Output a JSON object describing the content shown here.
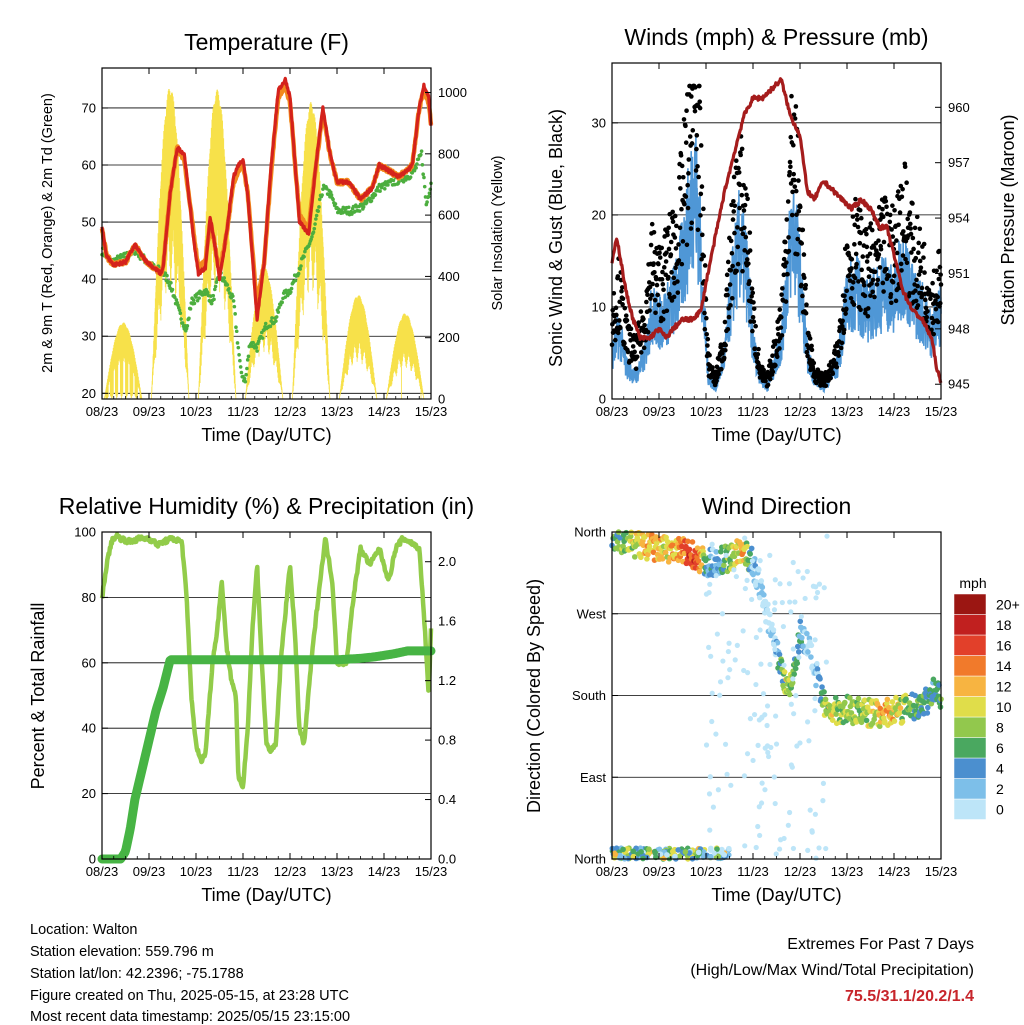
{
  "colors": {
    "temp_red": "#d4221c",
    "temp_orange": "#f28a1e",
    "dewpoint_green": "#4cae3e",
    "solar_yellow": "#f7e14a",
    "wind_blue": "#4f97d6",
    "gust_black": "#000000",
    "pressure_maroon": "#a51c1c",
    "rh_lightgreen": "#92cc4a",
    "precip_green": "#47b444",
    "extremes_red": "#c7252b"
  },
  "speed_colors": [
    "#bde5f8",
    "#7dbfe9",
    "#4b8fcf",
    "#4aa860",
    "#92c84d",
    "#e0dd4a",
    "#f7b441",
    "#f17a2b",
    "#e2402a",
    "#c1201f",
    "#9b1612"
  ],
  "time_ticks": [
    "08/23",
    "09/23",
    "10/23",
    "11/23",
    "12/23",
    "13/23",
    "14/23",
    "15/23"
  ],
  "chart_data": [
    {
      "type": "line",
      "title": "Temperature (F)",
      "xlabel": "Time (Day/UTC)",
      "ylabel": "2m & 9m T (Red, Orange) & 2m Td (Green)",
      "y2label": "Solar Insolation (Yellow)",
      "xlim": [
        8,
        15
      ],
      "ylim": [
        19,
        77
      ],
      "y2lim": [
        0,
        1080
      ],
      "yticks": [
        20,
        30,
        40,
        50,
        60,
        70
      ],
      "y2ticks": [
        0,
        200,
        400,
        600,
        800,
        1000
      ],
      "grid": true,
      "series": [
        {
          "name": "2m T",
          "x": [
            8.0,
            8.1,
            8.25,
            8.5,
            8.7,
            8.9,
            9.1,
            9.25,
            9.3,
            9.45,
            9.6,
            9.75,
            9.95,
            10.05,
            10.2,
            10.3,
            10.4,
            10.5,
            10.65,
            10.8,
            10.9,
            11.0,
            11.1,
            11.2,
            11.3,
            11.45,
            11.6,
            11.75,
            11.9,
            12.0,
            12.2,
            12.4,
            12.55,
            12.7,
            12.85,
            13.0,
            13.25,
            13.5,
            13.75,
            13.9,
            14.1,
            14.3,
            14.5,
            14.6,
            14.75,
            14.85,
            14.95,
            15.0
          ],
          "y": [
            49,
            44,
            42.5,
            43,
            46,
            43.5,
            42,
            41,
            42,
            55,
            63,
            62,
            47,
            41,
            42,
            51,
            46,
            40,
            48,
            58,
            60,
            61,
            55,
            44,
            33,
            43,
            60,
            73,
            75,
            72,
            50,
            48,
            60,
            70,
            62,
            57,
            57,
            54,
            56,
            60,
            59,
            58,
            59,
            60,
            70,
            74,
            72,
            67
          ]
        },
        {
          "name": "9m T",
          "x": [
            8.0,
            8.1,
            8.25,
            8.5,
            8.7,
            8.9,
            9.1,
            9.25,
            9.3,
            9.45,
            9.6,
            9.75,
            9.95,
            10.05,
            10.2,
            10.3,
            10.4,
            10.5,
            10.65,
            10.8,
            10.9,
            11.0,
            11.1,
            11.2,
            11.3,
            11.45,
            11.6,
            11.75,
            11.9,
            12.0,
            12.2,
            12.4,
            12.55,
            12.7,
            12.85,
            13.0,
            13.25,
            13.5,
            13.75,
            13.9,
            14.1,
            14.3,
            14.5,
            14.6,
            14.75,
            14.85,
            14.95,
            15.0
          ],
          "y": [
            49,
            44,
            42.5,
            43,
            46,
            43.5,
            42,
            41,
            42,
            55,
            63,
            61,
            48,
            42,
            43,
            50,
            46,
            41,
            48,
            57,
            59,
            60,
            55,
            45,
            35,
            43,
            59,
            72,
            74,
            71,
            51,
            49,
            60,
            69,
            62,
            57,
            57,
            54,
            56,
            60,
            59,
            58,
            59,
            60,
            70,
            73,
            71,
            67
          ]
        },
        {
          "name": "2m Td",
          "x": [
            8.0,
            8.2,
            8.5,
            8.7,
            8.9,
            9.1,
            9.25,
            9.3,
            9.4,
            9.5,
            9.65,
            9.8,
            9.9,
            10.05,
            10.2,
            10.35,
            10.5,
            10.65,
            10.8,
            10.95,
            11.05,
            11.15,
            11.3,
            11.5,
            11.7,
            11.85,
            12.0,
            12.2,
            12.4,
            12.5,
            12.6,
            12.7,
            12.85,
            13.0,
            13.3,
            13.6,
            13.9,
            14.2,
            14.5,
            14.65,
            14.8,
            14.9,
            15.0
          ],
          "y": [
            45,
            43,
            44,
            45,
            43.5,
            42,
            41.5,
            41,
            40,
            38,
            34,
            31,
            36,
            37,
            38,
            36,
            41,
            39,
            36,
            24,
            22,
            29,
            28,
            32,
            33,
            37,
            38,
            42,
            46,
            48,
            52,
            56,
            55,
            52,
            52,
            53,
            56,
            57,
            58,
            59,
            62,
            53,
            57
          ]
        },
        {
          "name": "Solar Insolation",
          "axis": "y2",
          "days": [
            {
              "peak": 250,
              "floor": 120
            },
            {
              "peak": 1020,
              "floor": 120
            },
            {
              "peak": 1010,
              "floor": 100
            },
            {
              "peak": 430,
              "floor": 120
            },
            {
              "peak": 970,
              "floor": 120
            },
            {
              "peak": 340,
              "floor": 120
            },
            {
              "peak": 280,
              "floor": 100
            },
            {
              "peak": 1080,
              "floor": 150
            }
          ]
        }
      ]
    },
    {
      "type": "scatter",
      "title": "Winds (mph) & Pressure (mb)",
      "xlabel": "Time (Day/UTC)",
      "ylabel": "Sonic Wind & Gust (Blue, Black)",
      "y2label": "Station Pressure (Maroon)",
      "xlim": [
        8,
        15
      ],
      "ylim": [
        0,
        36.5
      ],
      "y2lim": [
        944.2,
        962.4
      ],
      "yticks": [
        0,
        10,
        20,
        30
      ],
      "y2ticks": [
        945,
        948,
        951,
        954,
        957,
        960
      ],
      "grid": true,
      "series": [
        {
          "name": "Sonic Wind",
          "x": [
            8.0,
            8.15,
            8.3,
            8.5,
            8.7,
            8.85,
            9.0,
            9.2,
            9.4,
            9.6,
            9.75,
            9.85,
            9.95,
            10.05,
            10.2,
            10.4,
            10.55,
            10.7,
            10.85,
            11.0,
            11.15,
            11.3,
            11.45,
            11.6,
            11.75,
            11.85,
            12.0,
            12.15,
            12.3,
            12.5,
            12.65,
            12.8,
            13.0,
            13.2,
            13.4,
            13.6,
            13.8,
            14.0,
            14.2,
            14.4,
            14.6,
            14.8,
            15.0
          ],
          "y": [
            4,
            6,
            3,
            2,
            4,
            8,
            7,
            8,
            10,
            15,
            20,
            16,
            8,
            2,
            1,
            4,
            10,
            14,
            12,
            5,
            2,
            1,
            3,
            5,
            12,
            16,
            11,
            4,
            2,
            1,
            2,
            3,
            9,
            10,
            8,
            9,
            10,
            9,
            12,
            9,
            8,
            6,
            8
          ]
        },
        {
          "name": "Gust",
          "x": [
            8.0,
            8.15,
            8.3,
            8.5,
            8.7,
            8.85,
            9.0,
            9.2,
            9.4,
            9.6,
            9.75,
            9.85,
            9.95,
            10.05,
            10.2,
            10.4,
            10.55,
            10.7,
            10.85,
            11.0,
            11.15,
            11.3,
            11.45,
            11.6,
            11.75,
            11.85,
            12.0,
            12.15,
            12.3,
            12.5,
            12.65,
            12.8,
            13.0,
            13.2,
            13.4,
            13.6,
            13.8,
            14.0,
            14.2,
            14.4,
            14.6,
            14.8,
            15.0
          ],
          "y": [
            9,
            12,
            7,
            5,
            9,
            15,
            13,
            15,
            18,
            26,
            33,
            28,
            15,
            4,
            2,
            7,
            17,
            23,
            20,
            9,
            3,
            2,
            5,
            9,
            21,
            28,
            20,
            7,
            3,
            2,
            3,
            5,
            15,
            17,
            14,
            15,
            17,
            16,
            21,
            16,
            14,
            11,
            13
          ]
        },
        {
          "name": "Station Pressure",
          "axis": "y2",
          "x": [
            8.0,
            8.1,
            8.2,
            8.3,
            8.45,
            8.6,
            8.8,
            9.0,
            9.15,
            9.3,
            9.5,
            9.7,
            9.9,
            10.0,
            10.2,
            10.4,
            10.6,
            10.8,
            11.0,
            11.2,
            11.4,
            11.6,
            11.8,
            12.0,
            12.15,
            12.3,
            12.5,
            12.7,
            12.9,
            13.1,
            13.3,
            13.5,
            13.7,
            13.85,
            14.0,
            14.1,
            14.2,
            14.4,
            14.6,
            14.8,
            14.9,
            15.0
          ],
          "y": [
            951.5,
            953.0,
            951.5,
            950.0,
            948.5,
            947.5,
            947.5,
            948.0,
            947.5,
            948.0,
            948.5,
            948.5,
            949.0,
            950.5,
            953.0,
            955.5,
            957.5,
            959.5,
            960.5,
            960.5,
            961.0,
            961.5,
            959.5,
            958.5,
            955.5,
            955.0,
            956.0,
            955.5,
            955.0,
            954.5,
            955.0,
            954.5,
            953.5,
            953.5,
            952.0,
            951.0,
            950.0,
            949.0,
            948.5,
            947.5,
            946.0,
            945.0
          ]
        }
      ]
    },
    {
      "type": "line",
      "title": "Relative Humidity (%) & Precipitation (in)",
      "xlabel": "Time (Day/UTC)",
      "ylabel": "Percent & Total Rainfall",
      "xlim": [
        8,
        15
      ],
      "ylim": [
        0,
        100
      ],
      "y2lim": [
        0,
        2.2
      ],
      "yticks": [
        0,
        20,
        40,
        60,
        80,
        100
      ],
      "y2ticks": [
        0.0,
        0.4,
        0.8,
        1.2,
        1.6,
        2.0
      ],
      "grid": true,
      "series": [
        {
          "name": "Relative Humidity",
          "x": [
            8.0,
            8.1,
            8.2,
            8.3,
            8.4,
            8.6,
            8.8,
            9.0,
            9.2,
            9.3,
            9.5,
            9.7,
            9.8,
            9.9,
            10.0,
            10.1,
            10.2,
            10.35,
            10.45,
            10.55,
            10.65,
            10.75,
            10.85,
            10.9,
            11.0,
            11.1,
            11.2,
            11.3,
            11.4,
            11.5,
            11.6,
            11.7,
            11.8,
            11.9,
            12.0,
            12.1,
            12.2,
            12.3,
            12.45,
            12.6,
            12.75,
            12.9,
            13.0,
            13.2,
            13.35,
            13.5,
            13.7,
            13.9,
            14.1,
            14.25,
            14.4,
            14.55,
            14.75,
            14.85,
            14.95,
            15.0
          ],
          "y": [
            80,
            90,
            97,
            99,
            98,
            97,
            98,
            98,
            96,
            97,
            98,
            97,
            80,
            50,
            35,
            30,
            32,
            60,
            70,
            85,
            65,
            55,
            50,
            25,
            22,
            40,
            70,
            90,
            60,
            35,
            33,
            35,
            60,
            75,
            90,
            70,
            40,
            35,
            60,
            80,
            98,
            85,
            60,
            60,
            80,
            95,
            90,
            95,
            85,
            95,
            98,
            97,
            95,
            75,
            50,
            70
          ]
        },
        {
          "name": "Total Precipitation",
          "axis": "y2",
          "x": [
            8.0,
            8.2,
            8.4,
            8.5,
            8.6,
            8.7,
            8.85,
            9.0,
            9.15,
            9.3,
            9.45,
            10.0,
            11.0,
            12.0,
            12.5,
            13.0,
            13.5,
            13.8,
            14.0,
            14.2,
            14.5,
            14.8,
            15.0
          ],
          "y": [
            0.0,
            0.0,
            0.0,
            0.05,
            0.2,
            0.4,
            0.6,
            0.8,
            1.0,
            1.15,
            1.34,
            1.34,
            1.34,
            1.34,
            1.34,
            1.34,
            1.35,
            1.36,
            1.37,
            1.38,
            1.4,
            1.4,
            1.4
          ]
        }
      ]
    },
    {
      "type": "scatter",
      "title": "Wind Direction",
      "xlabel": "Time (Day/UTC)",
      "ylabel": "Direction (Colored By Speed)",
      "xlim": [
        8,
        15
      ],
      "ylim": [
        0,
        360
      ],
      "yticks": [
        "North",
        "East",
        "South",
        "West",
        "North"
      ],
      "legend_title": "mph",
      "legend_labels": [
        "0",
        "2",
        "4",
        "6",
        "8",
        "10",
        "12",
        "14",
        "16",
        "18",
        "20+"
      ],
      "legend_position": "right",
      "series": [
        {
          "name": "Direction",
          "x": [
            8.0,
            8.3,
            8.6,
            8.9,
            9.2,
            9.5,
            9.75,
            9.9,
            10.0,
            10.2,
            10.4,
            10.6,
            10.8,
            11.0,
            11.2,
            11.35,
            11.5,
            11.65,
            11.75,
            11.85,
            12.0,
            12.2,
            12.35,
            12.5,
            12.65,
            12.8,
            13.0,
            13.3,
            13.6,
            13.9,
            14.2,
            14.5,
            14.7,
            14.85,
            15.0
          ],
          "y": [
            355,
            350,
            345,
            342,
            340,
            338,
            335,
            330,
            325,
            328,
            330,
            335,
            340,
            325,
            290,
            260,
            230,
            200,
            190,
            200,
            250,
            230,
            200,
            170,
            160,
            165,
            165,
            162,
            160,
            162,
            165,
            168,
            175,
            185,
            180
          ],
          "speed": [
            6,
            8,
            10,
            12,
            10,
            14,
            16,
            12,
            4,
            2,
            6,
            10,
            12,
            2,
            0,
            0,
            2,
            8,
            10,
            6,
            4,
            0,
            0,
            8,
            10,
            8,
            8,
            8,
            10,
            12,
            8,
            6,
            6,
            4,
            6
          ]
        }
      ]
    }
  ],
  "info": {
    "location": "Location: Walton",
    "elevation": "Station elevation: 559.796 m",
    "latlon": "Station lat/lon: 42.2396; -75.1788",
    "created": "Figure created on Thu, 2025-05-15, at 23:28 UTC",
    "recent": "Most recent data timestamp: 2025/05/15 23:15:00"
  },
  "extremes": {
    "title": "Extremes For Past 7 Days",
    "subtitle": "(High/Low/Max Wind/Total Precipitation)",
    "values": "75.5/31.1/20.2/1.4"
  }
}
